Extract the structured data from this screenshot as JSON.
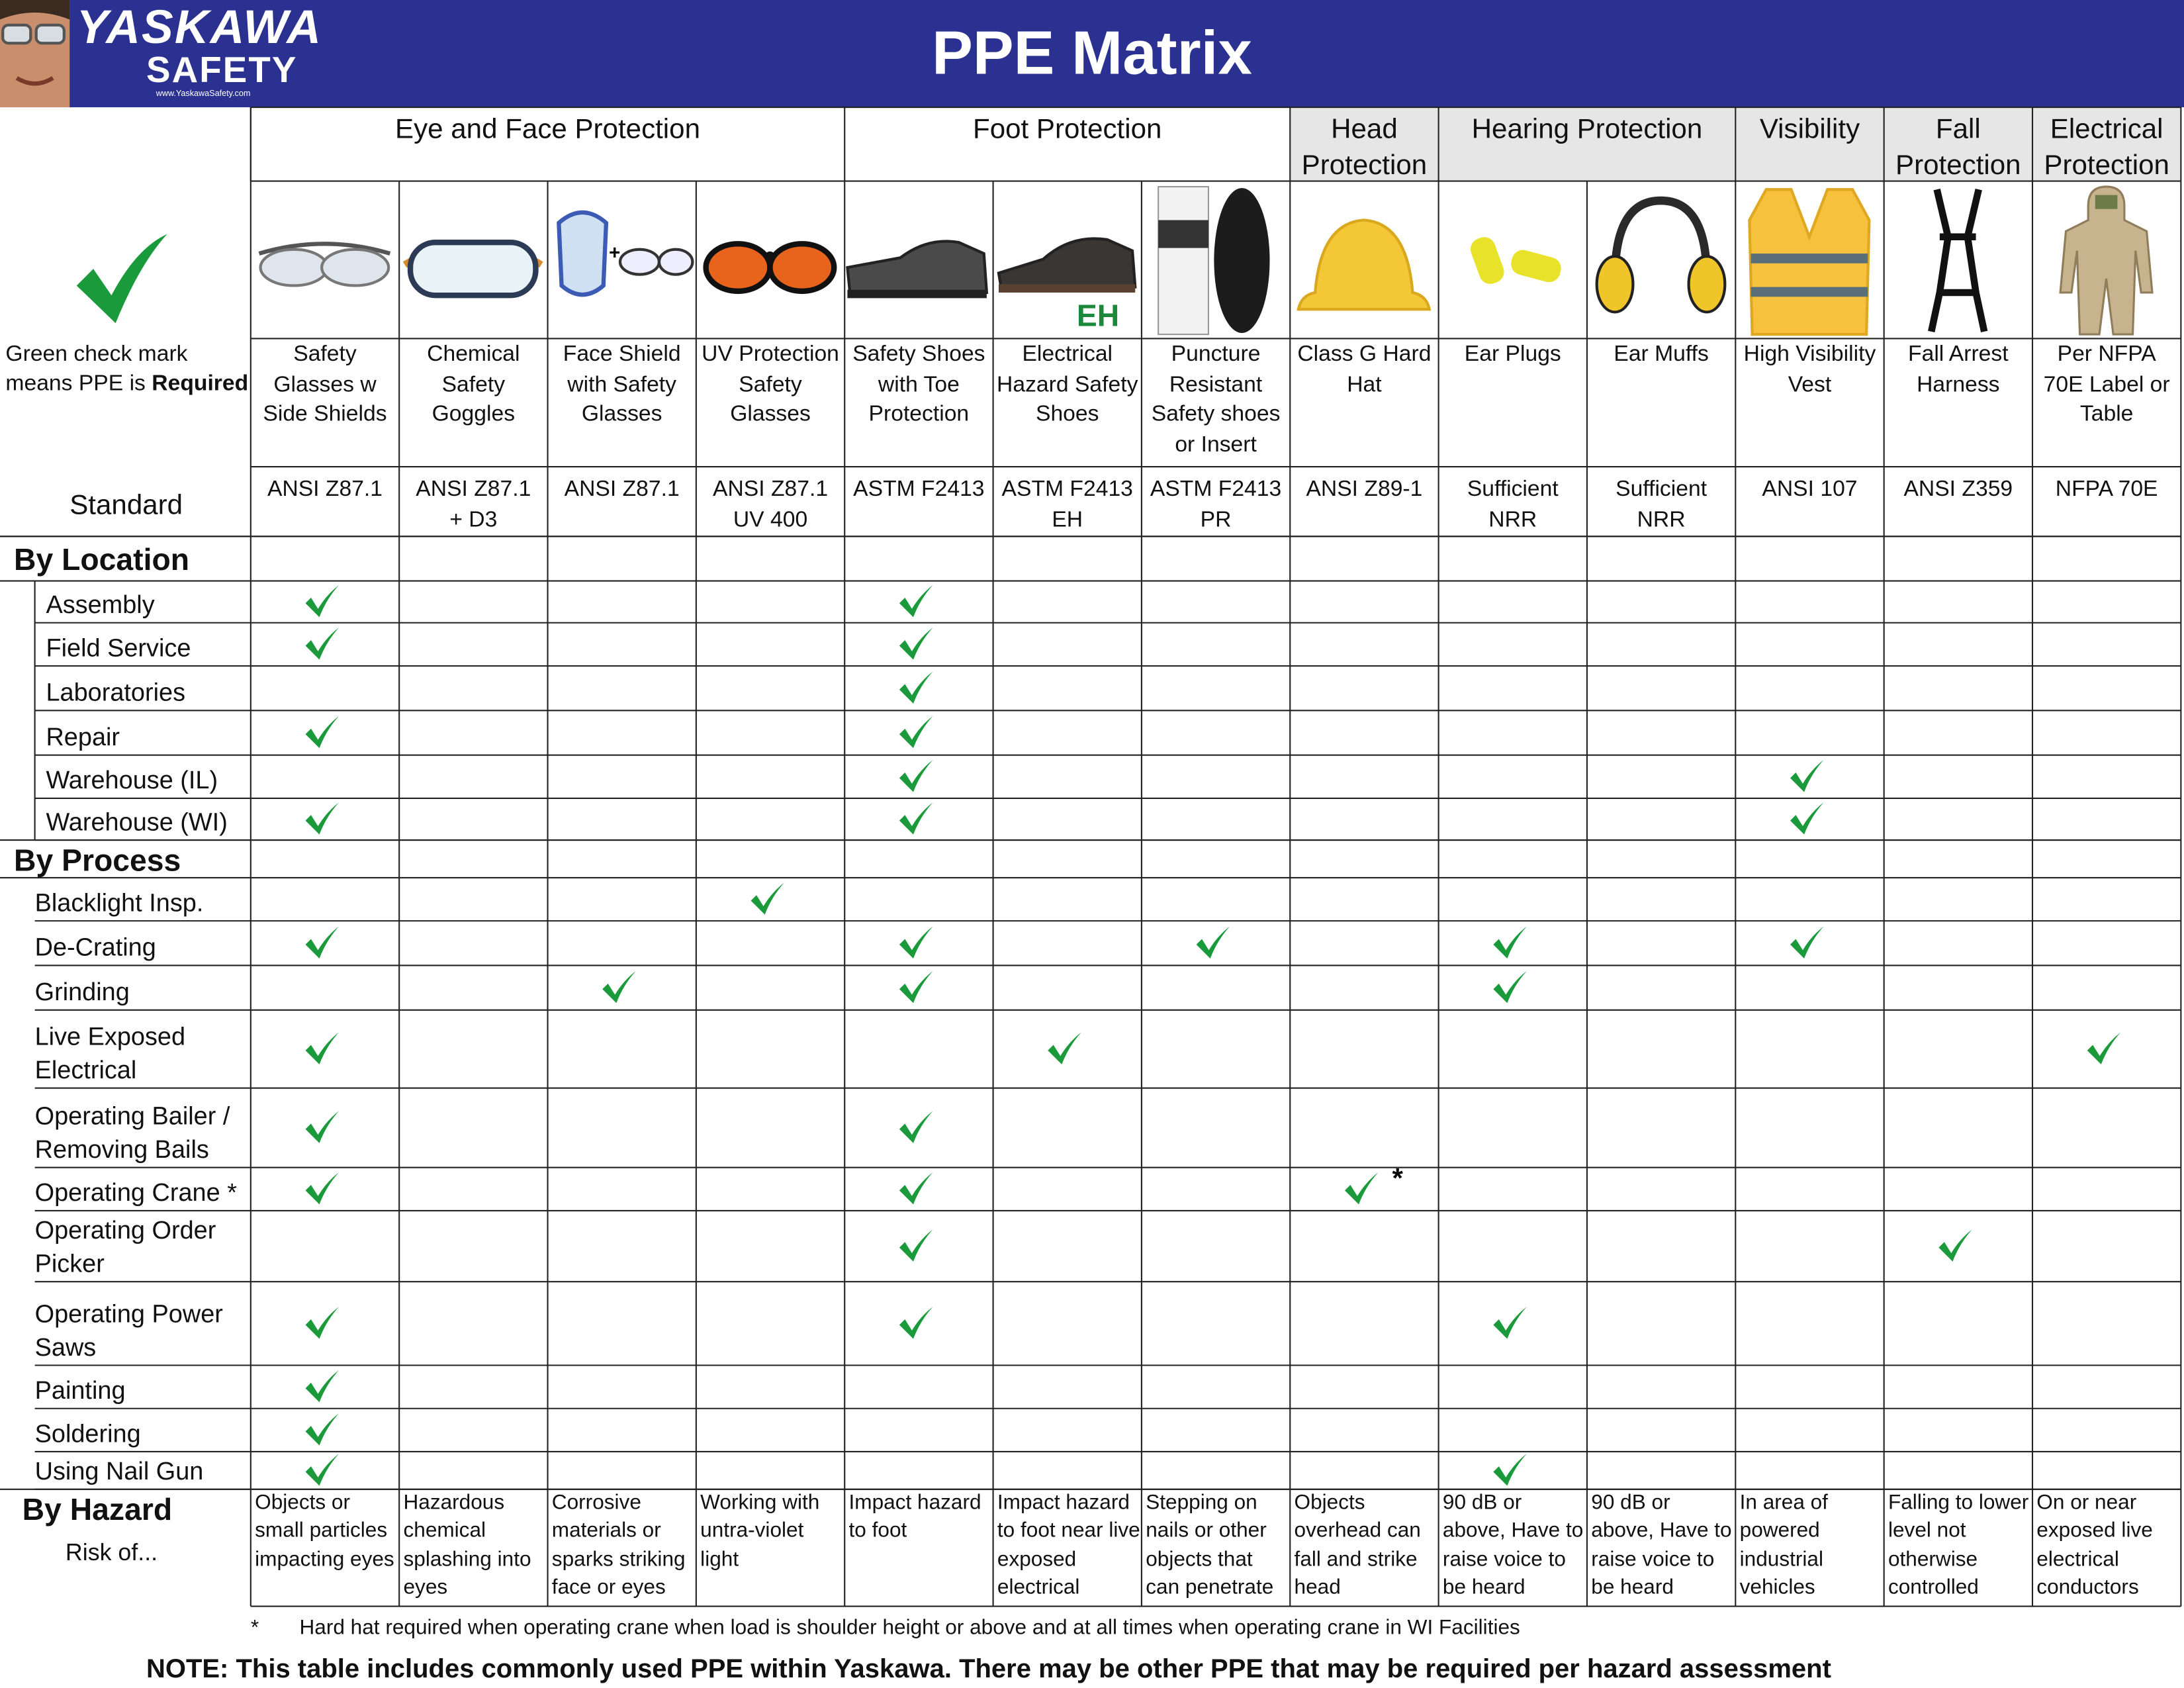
{
  "header": {
    "logo_title": "YASKAWA",
    "logo_subtitle": "SAFETY",
    "logo_url": "www.YaskawaSafety.com",
    "title": "PPE Matrix"
  },
  "legend": {
    "text": "Green check mark means PPE is",
    "bold": "Required"
  },
  "groups": [
    {
      "label": "Eye and Face Protection",
      "span": 4
    },
    {
      "label": "Foot Protection",
      "span": 3
    },
    {
      "label": "Head Protection",
      "span": 1
    },
    {
      "label": "Hearing Protection",
      "span": 2
    },
    {
      "label": "Visibility",
      "span": 1
    },
    {
      "label": "Fall Protection",
      "span": 1
    },
    {
      "label": "Electrical Protection",
      "span": 1
    }
  ],
  "columns": [
    {
      "name": "Safety Glasses w Side Shields",
      "standard": "ANSI Z87.1",
      "hazard": "Objects or small particles impacting eyes"
    },
    {
      "name": "Chemical Safety Goggles",
      "standard": "ANSI Z87.1 + D3",
      "hazard": "Hazardous chemical splashing into eyes"
    },
    {
      "name": "Face Shield with Safety Glasses",
      "image_label": "+",
      "standard": "ANSI Z87.1",
      "hazard": "Corrosive materials or sparks striking face or eyes"
    },
    {
      "name": "UV Protection Safety Glasses",
      "standard": "ANSI Z87.1 UV 400",
      "hazard": "Working with untra-violet light"
    },
    {
      "name": "Safety Shoes with Toe Protection",
      "standard": "ASTM F2413",
      "hazard": "Impact hazard to foot"
    },
    {
      "name": "Electrical Hazard Safety Shoes",
      "image_label": "EH",
      "standard": "ASTM F2413 EH",
      "hazard": "Impact hazard to foot near live exposed electrical"
    },
    {
      "name": "Puncture Resistant Safety shoes or Insert",
      "standard": "ASTM F2413 PR",
      "hazard": "Stepping on nails or other objects that can penetrate"
    },
    {
      "name": "Class G Hard Hat",
      "standard": "ANSI Z89-1",
      "hazard": "Objects overhead can fall and strike head"
    },
    {
      "name": "Ear Plugs",
      "standard": "Sufficient NRR",
      "hazard": "90 dB or above, Have to raise voice to be heard"
    },
    {
      "name": "Ear Muffs",
      "standard": "Sufficient NRR",
      "hazard": "90 dB or above, Have to raise voice to be heard"
    },
    {
      "name": "High Visibility Vest",
      "standard": "ANSI 107",
      "hazard": "In area of powered industrial vehicles"
    },
    {
      "name": "Fall Arrest Harness",
      "standard": "ANSI Z359",
      "hazard": "Falling to lower level not otherwise controlled"
    },
    {
      "name": "Per NFPA 70E Label or Table",
      "standard": "NFPA 70E",
      "hazard": "On or near exposed live electrical conductors"
    }
  ],
  "standard_label": "Standard",
  "sections": [
    {
      "title": "By Location",
      "rows": [
        {
          "label": "Assembly",
          "cells": [
            true,
            false,
            false,
            false,
            true,
            false,
            false,
            false,
            false,
            false,
            false,
            false,
            false
          ]
        },
        {
          "label": "Field Service",
          "cells": [
            true,
            false,
            false,
            false,
            true,
            false,
            false,
            false,
            false,
            false,
            false,
            false,
            false
          ]
        },
        {
          "label": "Laboratories",
          "cells": [
            false,
            false,
            false,
            false,
            true,
            false,
            false,
            false,
            false,
            false,
            false,
            false,
            false
          ]
        },
        {
          "label": "Repair",
          "cells": [
            true,
            false,
            false,
            false,
            true,
            false,
            false,
            false,
            false,
            false,
            false,
            false,
            false
          ]
        },
        {
          "label": "Warehouse (IL)",
          "cells": [
            false,
            false,
            false,
            false,
            true,
            false,
            false,
            false,
            false,
            false,
            true,
            false,
            false
          ]
        },
        {
          "label": "Warehouse (WI)",
          "cells": [
            true,
            false,
            false,
            false,
            true,
            false,
            false,
            false,
            false,
            false,
            true,
            false,
            false
          ]
        }
      ]
    },
    {
      "title": "By Process",
      "rows": [
        {
          "label": "Blacklight Insp.",
          "cells": [
            false,
            false,
            false,
            true,
            false,
            false,
            false,
            false,
            false,
            false,
            false,
            false,
            false
          ]
        },
        {
          "label": "De-Crating",
          "cells": [
            true,
            false,
            false,
            false,
            true,
            false,
            true,
            false,
            true,
            false,
            true,
            false,
            false
          ]
        },
        {
          "label": "Grinding",
          "cells": [
            false,
            false,
            true,
            false,
            true,
            false,
            false,
            false,
            true,
            false,
            false,
            false,
            false
          ]
        },
        {
          "label": "Live Exposed Electrical",
          "cells": [
            true,
            false,
            false,
            false,
            false,
            true,
            false,
            false,
            false,
            false,
            false,
            false,
            true
          ]
        },
        {
          "label": "Operating Bailer / Removing Bails",
          "cells": [
            true,
            false,
            false,
            false,
            true,
            false,
            false,
            false,
            false,
            false,
            false,
            false,
            false
          ]
        },
        {
          "label": "Operating Crane *",
          "cells": [
            true,
            false,
            false,
            false,
            true,
            false,
            false,
            {
              "check": true,
              "note": "*"
            },
            false,
            false,
            false,
            false,
            false
          ]
        },
        {
          "label": "Operating Order Picker",
          "cells": [
            false,
            false,
            false,
            false,
            true,
            false,
            false,
            false,
            false,
            false,
            false,
            true,
            false
          ]
        },
        {
          "label": "Operating Power Saws",
          "cells": [
            true,
            false,
            false,
            false,
            true,
            false,
            false,
            false,
            true,
            false,
            false,
            false,
            false
          ]
        },
        {
          "label": "Painting",
          "cells": [
            true,
            false,
            false,
            false,
            false,
            false,
            false,
            false,
            false,
            false,
            false,
            false,
            false
          ]
        },
        {
          "label": "Soldering",
          "cells": [
            true,
            false,
            false,
            false,
            false,
            false,
            false,
            false,
            false,
            false,
            false,
            false,
            false
          ]
        },
        {
          "label": "Using Nail Gun",
          "cells": [
            true,
            false,
            false,
            false,
            false,
            false,
            false,
            false,
            true,
            false,
            false,
            false,
            false
          ]
        }
      ]
    }
  ],
  "hazard": {
    "title": "By Hazard",
    "subtitle": "Risk of..."
  },
  "footnote": {
    "marker": "*",
    "text": "Hard hat required when operating crane when load is shoulder height or above and at all times when operating crane in WI Facilities"
  },
  "note": "NOTE: This table includes commonly used PPE within Yaskawa. There may be other PPE that may be required per hazard assessment"
}
